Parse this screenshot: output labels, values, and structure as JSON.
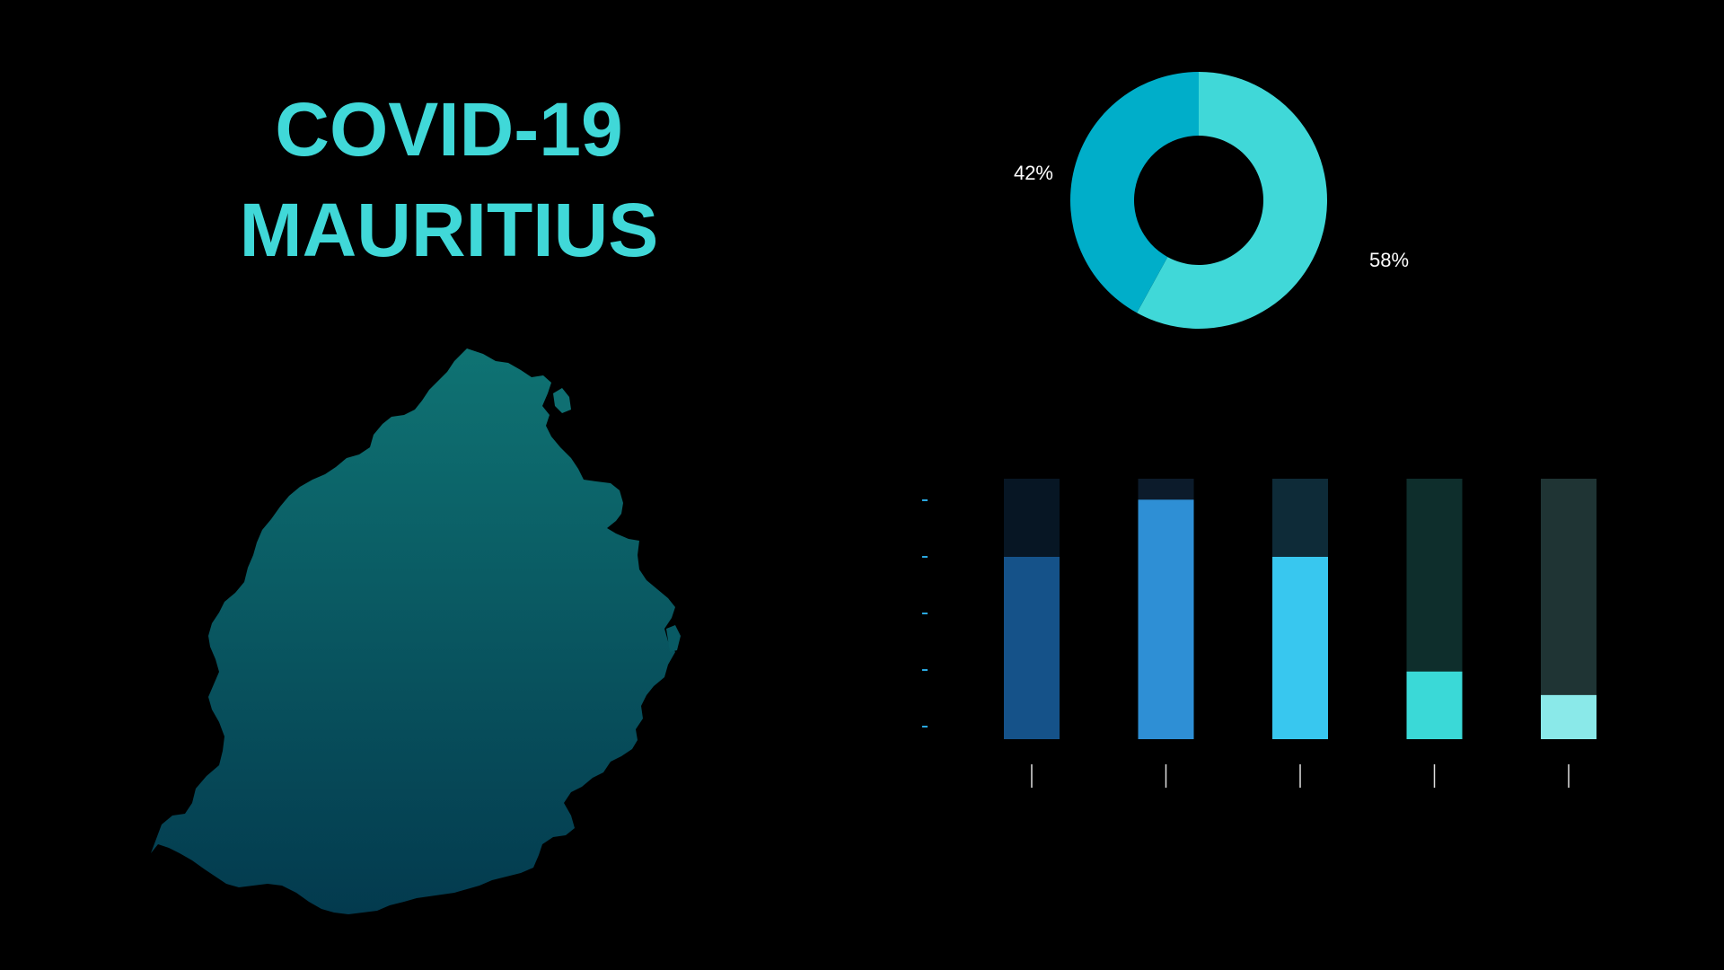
{
  "title": {
    "line1": "COVID-19",
    "line2": "MAURITIUS"
  },
  "colors": {
    "background": "#000000",
    "title": "#40d8d8",
    "map_top": "#0f7373",
    "map_bottom": "#033a4e",
    "tick": "#2aa8e0",
    "axis_tick": "#e0e0e0",
    "label": "#ffffff"
  },
  "chart_data": [
    {
      "type": "pie",
      "donut": true,
      "values": [
        58,
        42
      ],
      "labels": [
        "58%",
        "42%"
      ],
      "colors": [
        "#40d8d8",
        "#00aec9"
      ]
    },
    {
      "type": "bar",
      "stacked": true,
      "categories": [
        "",
        "",
        "",
        "",
        ""
      ],
      "ylim": [
        0,
        100
      ],
      "grid": false,
      "series": [
        {
          "values": [
            70,
            92,
            70,
            26,
            17
          ],
          "colors": [
            "#155289",
            "#2e8fd5",
            "#38c7ef",
            "#3ad9d7",
            "#8ae9e9"
          ]
        },
        {
          "values": [
            30,
            8,
            30,
            74,
            83
          ],
          "colors": [
            "#071624",
            "#0c1b2b",
            "#0e2b38",
            "#0e2e2c",
            "#1f3434"
          ]
        }
      ]
    }
  ]
}
